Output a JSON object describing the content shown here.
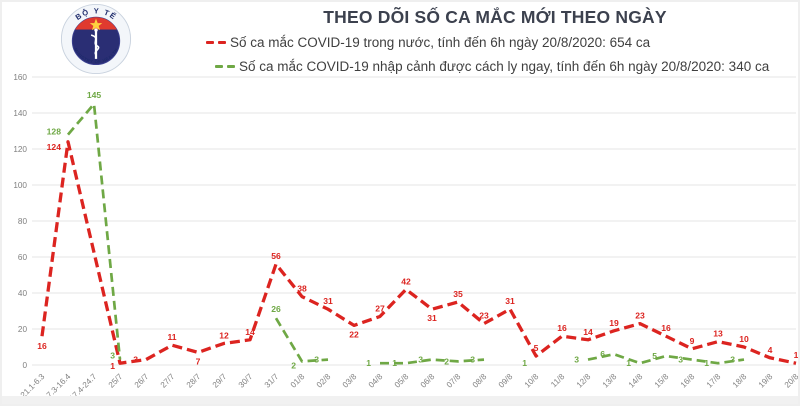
{
  "header": {
    "title": "THEO DÕI SỐ CA MẮC MỚI THEO NGÀY"
  },
  "logo": {
    "top_text": "BỘ Y TẾ",
    "bottom_text": "MINISTRY OF HEALTH",
    "navy": "#2a2e74",
    "red": "#e03a2f",
    "star": "#ffd23f"
  },
  "legend": [
    {
      "label": "Số ca mắc COVID-19 trong nước, tính đến 6h ngày 20/8/2020: 654 ca",
      "color": "#dc2420"
    },
    {
      "label": "Số ca mắc COVID-19 nhập cảnh được cách ly ngay, tính đến 6h ngày 20/8/2020: 340 ca",
      "color": "#6fa845"
    }
  ],
  "chart_data": {
    "type": "line",
    "title": "THEO DÕI SỐ CA MẮC MỚI THEO NGÀY",
    "categories": [
      "21.1-6.3",
      "7.3-16.4",
      "17.4-24.7",
      "25/7",
      "26/7",
      "27/7",
      "28/7",
      "29/7",
      "30/7",
      "31/7",
      "01/8",
      "02/8",
      "03/8",
      "04/8",
      "05/8",
      "06/8",
      "07/8",
      "08/8",
      "09/8",
      "10/8",
      "11/8",
      "12/8",
      "13/8",
      "14/8",
      "15/8",
      "16/8",
      "17/8",
      "18/8",
      "19/8",
      "20/8"
    ],
    "series": [
      {
        "name": "Số ca mắc COVID-19 trong nước",
        "color": "#dc2420",
        "dashed": true,
        "connect_gaps": true,
        "total": 654,
        "values": [
          16,
          124,
          null,
          1,
          3,
          11,
          7,
          12,
          14,
          56,
          38,
          31,
          22,
          27,
          42,
          31,
          35,
          23,
          31,
          5,
          16,
          14,
          19,
          23,
          16,
          9,
          13,
          10,
          4,
          1
        ]
      },
      {
        "name": "Số ca mắc COVID-19 nhập cảnh được cách ly ngay",
        "color": "#6fa845",
        "dashed": true,
        "connect_gaps": false,
        "total": 340,
        "values": [
          null,
          128,
          145,
          3,
          null,
          null,
          null,
          null,
          null,
          26,
          2,
          3,
          null,
          1,
          1,
          3,
          2,
          3,
          null,
          1,
          null,
          3,
          6,
          1,
          5,
          3,
          1,
          3,
          null,
          null
        ]
      }
    ],
    "ylim": [
      0,
      160
    ],
    "ytick_step": 20,
    "grid": true,
    "grid_color": "#e6e6e6",
    "axis_label_color": "#7f7f7f",
    "legend_position": "top"
  }
}
